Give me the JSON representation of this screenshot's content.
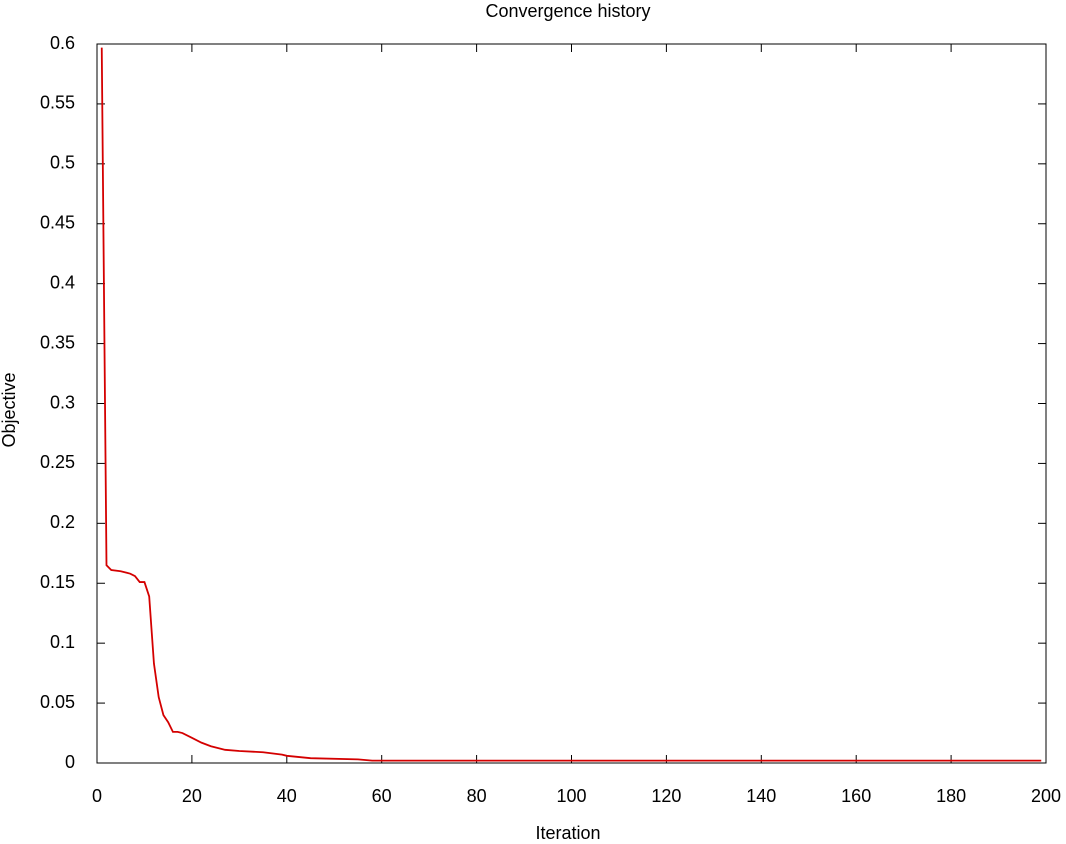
{
  "chart_data": {
    "type": "line",
    "title": "Convergence history",
    "xlabel": "Iteration",
    "ylabel": "Objective",
    "x": [
      1,
      2,
      3,
      5,
      7,
      8,
      9,
      10,
      11,
      12,
      13,
      14,
      15,
      16,
      17,
      18,
      20,
      22,
      24,
      27,
      30,
      35,
      39,
      40,
      45,
      55,
      58,
      100,
      150,
      199
    ],
    "series": [
      {
        "name": "Objective",
        "color": "#d40000",
        "values": [
          0.597,
          0.165,
          0.161,
          0.16,
          0.158,
          0.156,
          0.151,
          0.151,
          0.139,
          0.083,
          0.055,
          0.04,
          0.034,
          0.026,
          0.026,
          0.025,
          0.021,
          0.017,
          0.014,
          0.011,
          0.01,
          0.009,
          0.007,
          0.006,
          0.004,
          0.003,
          0.002,
          0.002,
          0.002,
          0.002
        ]
      }
    ],
    "xlim": [
      0,
      200
    ],
    "xticks": [
      0,
      20,
      40,
      60,
      80,
      100,
      120,
      140,
      160,
      180,
      200
    ],
    "ylim": [
      0,
      0.6
    ],
    "yticks": [
      0,
      0.05,
      0.1,
      0.15,
      0.2,
      0.25,
      0.3,
      0.35,
      0.4,
      0.45,
      0.5,
      0.55,
      0.6
    ]
  }
}
